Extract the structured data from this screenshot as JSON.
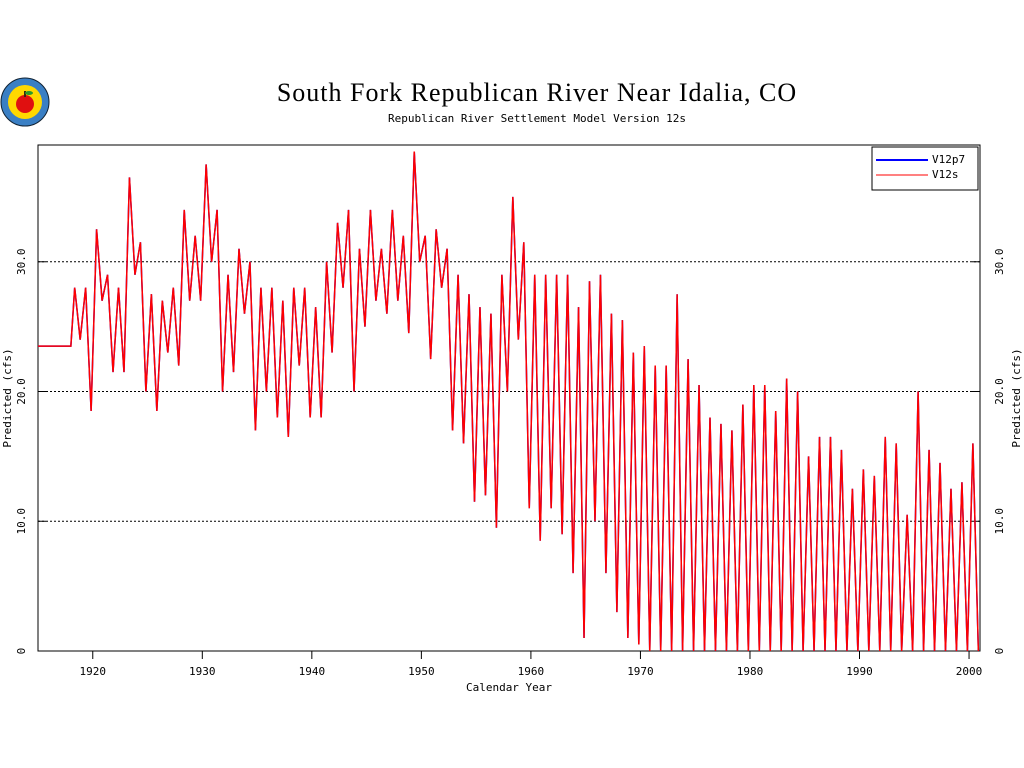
{
  "chart_data": {
    "type": "line",
    "title": "South Fork Republican River Near Idalia, CO",
    "subtitle": "Republican River Settlement Model Version 12s",
    "xlabel": "Calendar Year",
    "ylabel": "Predicted (cfs)",
    "xlim": [
      1915,
      2001
    ],
    "xticks": [
      1920,
      1930,
      1940,
      1950,
      1960,
      1970,
      1980,
      1990,
      2000
    ],
    "ylim": [
      0,
      39
    ],
    "yticks": [
      0,
      {
        "value": 10,
        "label": "10.0"
      },
      {
        "value": 20,
        "label": "20.0"
      },
      {
        "value": 30,
        "label": "30.0"
      }
    ],
    "grid": true,
    "legend": "upper right",
    "x": [
      1915,
      1918,
      1918.35,
      1918.85,
      1919.35,
      1919.85,
      1920.35,
      1920.85,
      1921.35,
      1921.85,
      1922.35,
      1922.85,
      1923.35,
      1923.85,
      1924.35,
      1924.85,
      1925.35,
      1925.85,
      1926.35,
      1926.85,
      1927.35,
      1927.85,
      1928.35,
      1928.85,
      1929.35,
      1929.85,
      1930.35,
      1930.85,
      1931.35,
      1931.85,
      1932.35,
      1932.85,
      1933.35,
      1933.85,
      1934.35,
      1934.85,
      1935.35,
      1935.85,
      1936.35,
      1936.85,
      1937.35,
      1937.85,
      1938.35,
      1938.85,
      1939.35,
      1939.85,
      1940.35,
      1940.85,
      1941.35,
      1941.85,
      1942.35,
      1942.85,
      1943.35,
      1943.85,
      1944.35,
      1944.85,
      1945.35,
      1945.85,
      1946.35,
      1946.85,
      1947.35,
      1947.85,
      1948.35,
      1948.85,
      1949.35,
      1949.85,
      1950.35,
      1950.85,
      1951.35,
      1951.85,
      1952.35,
      1952.85,
      1953.35,
      1953.85,
      1954.35,
      1954.85,
      1955.35,
      1955.85,
      1956.35,
      1956.85,
      1957.35,
      1957.85,
      1958.35,
      1958.85,
      1959.35,
      1959.85,
      1960.35,
      1960.85,
      1961.35,
      1961.85,
      1962.35,
      1962.85,
      1963.35,
      1963.85,
      1964.35,
      1964.85,
      1965.35,
      1965.85,
      1966.35,
      1966.85,
      1967.35,
      1967.85,
      1968.35,
      1968.85,
      1969.35,
      1969.85,
      1970.35,
      1970.85,
      1971.35,
      1971.85,
      1972.35,
      1972.85,
      1973.35,
      1973.85,
      1974.35,
      1974.85,
      1975.35,
      1975.85,
      1976.35,
      1976.85,
      1977.35,
      1977.85,
      1978.35,
      1978.85,
      1979.35,
      1979.85,
      1980.35,
      1980.85,
      1981.35,
      1981.85,
      1982.35,
      1982.85,
      1983.35,
      1983.85,
      1984.35,
      1984.85,
      1985.35,
      1985.85,
      1986.35,
      1986.85,
      1987.35,
      1987.85,
      1988.35,
      1988.85,
      1989.35,
      1989.85,
      1990.35,
      1990.85,
      1991.35,
      1991.85,
      1992.35,
      1992.85,
      1993.35,
      1993.85,
      1994.35,
      1994.85,
      1995.35,
      1995.85,
      1996.35,
      1996.85,
      1997.35,
      1997.85,
      1998.35,
      1998.85,
      1999.35,
      1999.85,
      2000.35,
      2000.85
    ],
    "series": [
      {
        "name": "V12p7",
        "color": "#0000ff",
        "values": [
          23.5,
          23.5,
          28,
          24,
          28,
          18.5,
          32.5,
          27,
          29,
          21.5,
          28,
          21.5,
          36.5,
          29,
          31.5,
          20,
          27.5,
          18.5,
          27,
          23,
          28,
          22,
          34,
          27,
          32,
          27,
          37.5,
          30,
          34,
          20,
          29,
          21.5,
          31,
          26,
          30,
          17,
          28,
          20,
          28,
          18,
          27,
          16.5,
          28,
          22,
          28,
          18,
          26.5,
          18,
          30,
          23,
          33,
          28,
          34,
          20,
          31,
          25,
          34,
          27,
          31,
          26,
          34,
          27,
          32,
          24.5,
          38.5,
          30,
          32,
          22.5,
          32.5,
          28,
          31,
          17,
          29,
          16,
          27.5,
          11.5,
          26.5,
          12,
          26,
          9.5,
          29,
          20,
          35,
          24,
          31.5,
          11,
          29,
          8.5,
          29,
          11,
          29,
          9,
          29,
          6,
          26.5,
          1,
          28.5,
          10,
          29,
          6,
          26,
          3,
          25.5,
          1,
          23,
          0.5,
          23.5,
          0,
          22,
          0,
          22,
          0,
          27.5,
          0,
          22.5,
          0,
          20.5,
          0,
          18,
          0,
          17.5,
          0,
          17,
          0,
          19,
          0,
          20.5,
          0,
          20.5,
          0,
          18.5,
          0,
          21,
          0,
          20,
          0,
          15,
          0,
          16.5,
          0,
          16.5,
          0,
          15.5,
          0,
          12.5,
          0,
          14,
          0,
          13.5,
          0,
          16.5,
          0,
          16,
          0,
          10.5,
          0,
          20,
          0,
          15.5,
          0,
          14.5,
          0,
          12.5,
          0,
          13,
          0,
          16,
          0
        ]
      },
      {
        "name": "V12s",
        "color": "#ff0000",
        "values": [
          23.5,
          23.5,
          28,
          24,
          28,
          18.5,
          32.5,
          27,
          29,
          21.5,
          28,
          21.5,
          36.5,
          29,
          31.5,
          20,
          27.5,
          18.5,
          27,
          23,
          28,
          22,
          34,
          27,
          32,
          27,
          37.5,
          30,
          34,
          20,
          29,
          21.5,
          31,
          26,
          30,
          17,
          28,
          20,
          28,
          18,
          27,
          16.5,
          28,
          22,
          28,
          18,
          26.5,
          18,
          30,
          23,
          33,
          28,
          34,
          20,
          31,
          25,
          34,
          27,
          31,
          26,
          34,
          27,
          32,
          24.5,
          38.5,
          30,
          32,
          22.5,
          32.5,
          28,
          31,
          17,
          29,
          16,
          27.5,
          11.5,
          26.5,
          12,
          26,
          9.5,
          29,
          20,
          35,
          24,
          31.5,
          11,
          29,
          8.5,
          29,
          11,
          29,
          9,
          29,
          6,
          26.5,
          1,
          28.5,
          10,
          29,
          6,
          26,
          3,
          25.5,
          1,
          23,
          0.5,
          23.5,
          0,
          22,
          0,
          22,
          0,
          27.5,
          0,
          22.5,
          0,
          20.5,
          0,
          18,
          0,
          17.5,
          0,
          17,
          0,
          19,
          0,
          20.5,
          0,
          20.5,
          0,
          18.5,
          0,
          21,
          0,
          20,
          0,
          15,
          0,
          16.5,
          0,
          16.5,
          0,
          15.5,
          0,
          12.5,
          0,
          14,
          0,
          13.5,
          0,
          16.5,
          0,
          16,
          0,
          10.5,
          0,
          20,
          0,
          15.5,
          0,
          14.5,
          0,
          12.5,
          0,
          13,
          0,
          16,
          0
        ]
      }
    ]
  }
}
